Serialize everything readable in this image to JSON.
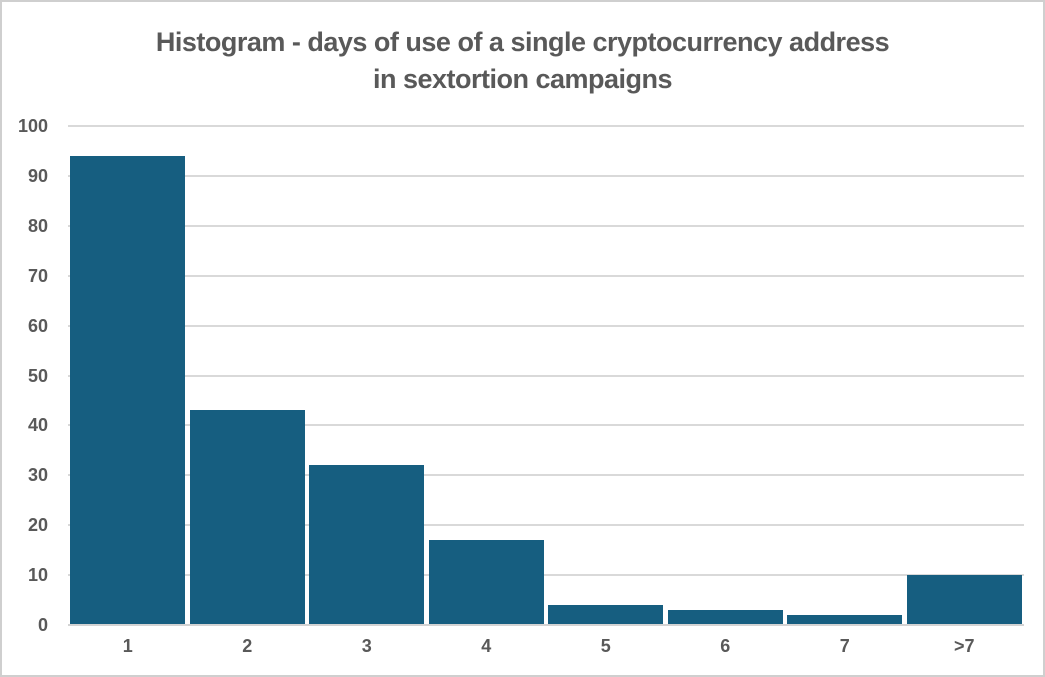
{
  "title": {
    "line1": "Histogram - days of use of a single cryptocurrency address",
    "line2": "in sextortion campaigns"
  },
  "colors": {
    "background": "#ffffff",
    "border": "#cfcfcf",
    "bar": "#165e80",
    "title_text": "#595959",
    "axis_text": "#595959",
    "gridline": "#d9d9d9",
    "axis_line": "#d3d3d3"
  },
  "chart_data": {
    "type": "bar",
    "title": "Histogram - days of use of a single cryptocurrency address in sextortion campaigns",
    "categories": [
      "1",
      "2",
      "3",
      "4",
      "5",
      "6",
      "7",
      ">7"
    ],
    "values": [
      94,
      43,
      32,
      17,
      4,
      3,
      2,
      10
    ],
    "xlabel": "",
    "ylabel": "",
    "ylim": [
      0,
      100
    ],
    "yticks": [
      0,
      10,
      20,
      30,
      40,
      50,
      60,
      70,
      80,
      90,
      100
    ],
    "grid": "horizontal",
    "legend": "none",
    "bar_gap_fraction": 0.04
  }
}
